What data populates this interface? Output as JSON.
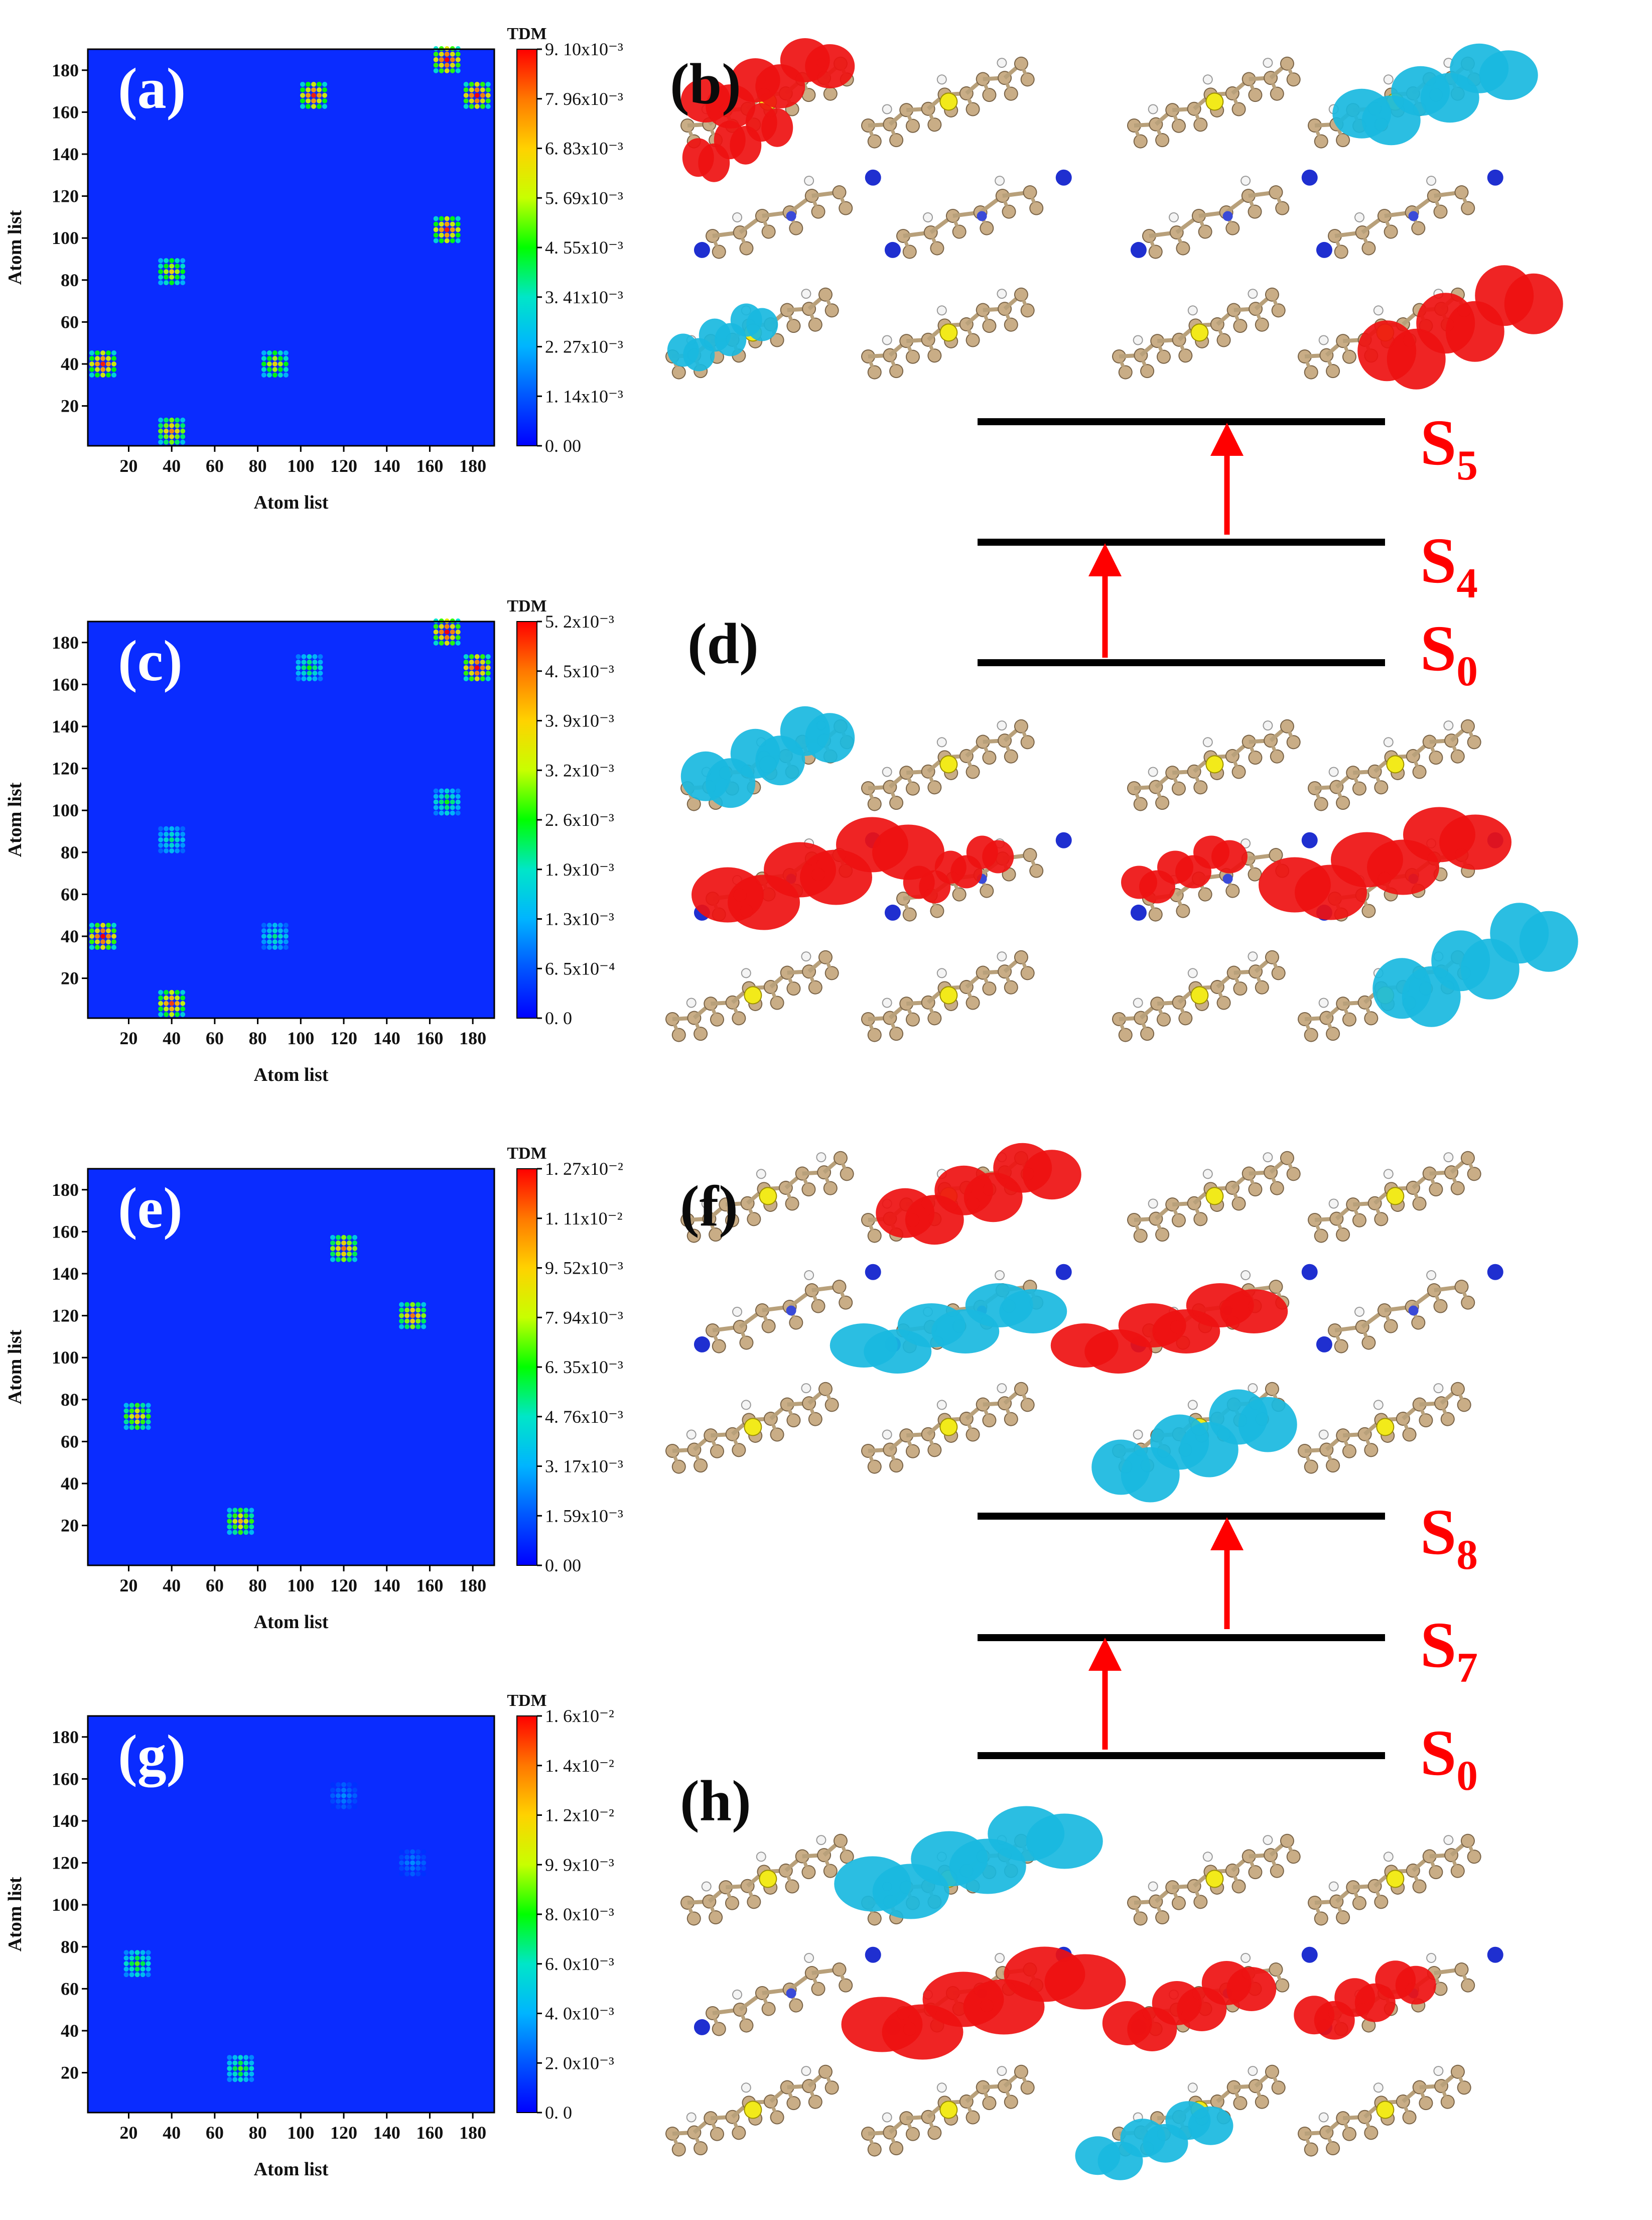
{
  "panels": [
    {
      "id": "a",
      "label": "(a)",
      "legend_title": "TDM",
      "colorbar_ticks": [
        "9. 10x10⁻³",
        "7. 96x10⁻³",
        "6. 83x10⁻³",
        "5. 69x10⁻³",
        "4. 55x10⁻³",
        "3. 41x10⁻³",
        "2. 27x10⁻³",
        "1. 14x10⁻³",
        "0. 00"
      ]
    },
    {
      "id": "c",
      "label": "(c)",
      "legend_title": "TDM",
      "colorbar_ticks": [
        "5. 2x10⁻³",
        "4. 5x10⁻³",
        "3. 9x10⁻³",
        "3. 2x10⁻³",
        "2. 6x10⁻³",
        "1. 9x10⁻³",
        "1. 3x10⁻³",
        "6. 5x10⁻⁴",
        "0. 0"
      ]
    },
    {
      "id": "e",
      "label": "(e)",
      "legend_title": "TDM",
      "colorbar_ticks": [
        "1. 27x10⁻²",
        "1. 11x10⁻²",
        "9. 52x10⁻³",
        "7. 94x10⁻³",
        "6. 35x10⁻³",
        "4. 76x10⁻³",
        "3. 17x10⁻³",
        "1. 59x10⁻³",
        "0. 00"
      ]
    },
    {
      "id": "g",
      "label": "(g)",
      "legend_title": "TDM",
      "colorbar_ticks": [
        "1. 6x10⁻²",
        "1. 4x10⁻²",
        "1. 2x10⁻²",
        "9. 9x10⁻³",
        "8. 0x10⁻³",
        "6. 0x10⁻³",
        "4. 0x10⁻³",
        "2. 0x10⁻³",
        "0. 0"
      ]
    }
  ],
  "axes": {
    "xlabel": "Atom list",
    "ylabel": "Atom list",
    "x_ticks": [
      "20",
      "40",
      "60",
      "80",
      "100",
      "120",
      "140",
      "160",
      "180"
    ],
    "y_ticks": [
      "20",
      "40",
      "60",
      "80",
      "100",
      "120",
      "140",
      "160",
      "180"
    ]
  },
  "structure_labels": {
    "b": "(b)",
    "d": "(d)",
    "f": "(f)",
    "h": "(h)"
  },
  "energy_diagrams": [
    {
      "states": [
        {
          "base": "S",
          "sub": "5"
        },
        {
          "base": "S",
          "sub": "4"
        },
        {
          "base": "S",
          "sub": "0"
        }
      ]
    },
    {
      "states": [
        {
          "base": "S",
          "sub": "8"
        },
        {
          "base": "S",
          "sub": "7"
        },
        {
          "base": "S",
          "sub": "0"
        }
      ]
    }
  ],
  "colors": {
    "background_blue": "#0a2cff",
    "arrow_red": "#ff0000",
    "level_black": "#000000"
  },
  "chart_data": [
    {
      "type": "heatmap",
      "panel": "(a)",
      "title": "",
      "xlabel": "Atom list",
      "ylabel": "Atom list",
      "xlim": [
        1,
        190
      ],
      "ylim": [
        1,
        190
      ],
      "value_max": 0.0091,
      "hotspots": [
        {
          "x": 40,
          "y": 8,
          "value": 0.0035
        },
        {
          "x": 8,
          "y": 40,
          "value": 0.004
        },
        {
          "x": 40,
          "y": 84,
          "value": 0.003
        },
        {
          "x": 88,
          "y": 40,
          "value": 0.003
        },
        {
          "x": 106,
          "y": 168,
          "value": 0.004
        },
        {
          "x": 168,
          "y": 104,
          "value": 0.004
        },
        {
          "x": 168,
          "y": 185,
          "value": 0.0042
        },
        {
          "x": 182,
          "y": 168,
          "value": 0.0042
        }
      ]
    },
    {
      "type": "heatmap",
      "panel": "(c)",
      "title": "",
      "xlabel": "Atom list",
      "ylabel": "Atom list",
      "xlim": [
        1,
        190
      ],
      "ylim": [
        1,
        190
      ],
      "value_max": 0.0052,
      "hotspots": [
        {
          "x": 40,
          "y": 8,
          "value": 0.0022
        },
        {
          "x": 8,
          "y": 40,
          "value": 0.0024
        },
        {
          "x": 40,
          "y": 86,
          "value": 0.001
        },
        {
          "x": 88,
          "y": 40,
          "value": 0.001
        },
        {
          "x": 104,
          "y": 168,
          "value": 0.0012
        },
        {
          "x": 168,
          "y": 104,
          "value": 0.0012
        },
        {
          "x": 168,
          "y": 185,
          "value": 0.0024
        },
        {
          "x": 182,
          "y": 168,
          "value": 0.0024
        }
      ]
    },
    {
      "type": "heatmap",
      "panel": "(e)",
      "title": "",
      "xlabel": "Atom list",
      "ylabel": "Atom list",
      "xlim": [
        1,
        190
      ],
      "ylim": [
        1,
        190
      ],
      "value_max": 0.0127,
      "hotspots": [
        {
          "x": 24,
          "y": 72,
          "value": 0.0045
        },
        {
          "x": 72,
          "y": 22,
          "value": 0.0045
        },
        {
          "x": 120,
          "y": 152,
          "value": 0.005
        },
        {
          "x": 152,
          "y": 120,
          "value": 0.005
        }
      ]
    },
    {
      "type": "heatmap",
      "panel": "(g)",
      "title": "",
      "xlabel": "Atom list",
      "ylabel": "Atom list",
      "xlim": [
        1,
        190
      ],
      "ylim": [
        1,
        190
      ],
      "value_max": 0.016,
      "hotspots": [
        {
          "x": 24,
          "y": 72,
          "value": 0.004
        },
        {
          "x": 72,
          "y": 22,
          "value": 0.004
        },
        {
          "x": 120,
          "y": 152,
          "value": 0.0015
        },
        {
          "x": 152,
          "y": 120,
          "value": 0.0015
        }
      ]
    }
  ]
}
